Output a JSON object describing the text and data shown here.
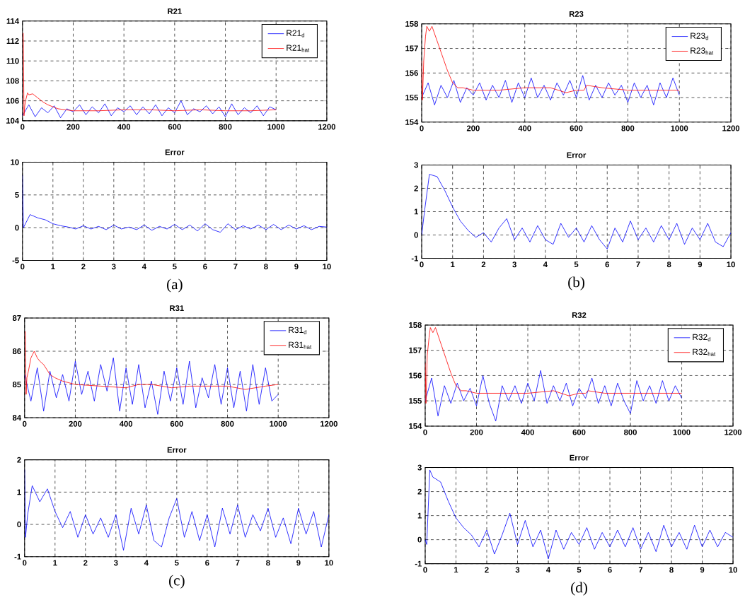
{
  "chart_data": [
    {
      "type": "line",
      "title": "R21",
      "xlim": [
        0,
        1200
      ],
      "ylim": [
        104,
        114
      ],
      "xticks": [
        0,
        200,
        400,
        600,
        800,
        1000,
        1200
      ],
      "yticks": [
        104,
        106,
        108,
        110,
        112,
        114
      ],
      "grid": true,
      "legend": "top right",
      "series": [
        {
          "name": "R21$_{d}$",
          "color": "#0000ff",
          "x": [
            0,
            25,
            50,
            75,
            100,
            125,
            150,
            175,
            200,
            225,
            250,
            275,
            300,
            325,
            350,
            375,
            400,
            425,
            450,
            475,
            500,
            525,
            550,
            575,
            600,
            625,
            650,
            675,
            700,
            725,
            750,
            775,
            800,
            825,
            850,
            875,
            900,
            925,
            950,
            975,
            1000
          ],
          "values": [
            104.5,
            105.6,
            104.4,
            105.3,
            104.8,
            105.5,
            104.3,
            105.2,
            104.9,
            105.6,
            104.6,
            105.4,
            104.8,
            105.7,
            104.5,
            105.3,
            104.9,
            105.5,
            104.6,
            105.4,
            104.7,
            105.6,
            104.5,
            105.3,
            104.8,
            106.0,
            104.6,
            105.2,
            104.9,
            105.5,
            104.7,
            105.4,
            104.4,
            105.7,
            104.6,
            105.3,
            104.8,
            105.5,
            104.5,
            105.4,
            105.1
          ]
        },
        {
          "name": "R21$_{hat}$",
          "color": "#ff0000",
          "x": [
            3,
            6,
            9,
            12,
            20,
            25,
            40,
            60,
            80,
            100,
            120,
            140,
            170,
            200,
            300,
            400,
            500,
            600,
            700,
            800,
            900,
            1000
          ],
          "values": [
            112.8,
            104.5,
            105.5,
            106.0,
            106.8,
            106.6,
            106.7,
            106.3,
            105.9,
            105.6,
            105.4,
            105.2,
            105.1,
            105.0,
            105.0,
            105.1,
            105.1,
            105.0,
            105.1,
            105.0,
            105.0,
            105.1
          ]
        }
      ]
    },
    {
      "type": "line",
      "title": "R23",
      "xlim": [
        0,
        1200
      ],
      "ylim": [
        154,
        158
      ],
      "xticks": [
        0,
        200,
        400,
        600,
        800,
        1000,
        1200
      ],
      "yticks": [
        154,
        155,
        156,
        157,
        158
      ],
      "grid": true,
      "legend": "top right",
      "series": [
        {
          "name": "R23$_{d}$",
          "color": "#0000ff",
          "x": [
            0,
            25,
            50,
            75,
            100,
            125,
            150,
            175,
            200,
            225,
            250,
            275,
            300,
            325,
            350,
            375,
            400,
            425,
            450,
            475,
            500,
            525,
            550,
            575,
            600,
            625,
            650,
            675,
            700,
            725,
            750,
            775,
            800,
            825,
            850,
            875,
            900,
            925,
            950,
            975,
            1000
          ],
          "values": [
            155.0,
            155.6,
            154.7,
            155.5,
            155.0,
            155.7,
            154.8,
            155.4,
            155.1,
            155.6,
            154.9,
            155.5,
            155.0,
            155.7,
            154.8,
            155.6,
            155.0,
            155.8,
            155.0,
            155.5,
            154.9,
            155.6,
            155.1,
            155.7,
            155.0,
            155.9,
            154.9,
            155.5,
            155.0,
            155.6,
            155.1,
            155.5,
            154.8,
            155.6,
            155.0,
            155.5,
            154.7,
            155.6,
            155.0,
            155.8,
            155.1
          ]
        },
        {
          "name": "R23$_{hat}$",
          "color": "#ff0000",
          "x": [
            0,
            3,
            8,
            15,
            20,
            30,
            40,
            60,
            80,
            100,
            120,
            140,
            160,
            200,
            300,
            400,
            500,
            560,
            600,
            630,
            640,
            700,
            800,
            900,
            1000
          ],
          "values": [
            156.5,
            154.9,
            156.5,
            157.5,
            157.9,
            157.7,
            157.9,
            157.3,
            156.7,
            156.1,
            155.6,
            155.4,
            155.4,
            155.3,
            155.3,
            155.4,
            155.4,
            155.2,
            155.3,
            155.3,
            155.5,
            155.4,
            155.3,
            155.3,
            155.3
          ]
        }
      ]
    },
    {
      "type": "line",
      "title": "Error",
      "xlim": [
        0,
        10
      ],
      "ylim": [
        -5,
        10
      ],
      "xticks": [
        0,
        1,
        2,
        3,
        4,
        5,
        6,
        7,
        8,
        9,
        10
      ],
      "yticks": [
        -5,
        0,
        5,
        10
      ],
      "grid": true,
      "annotations": [
        "(a)"
      ],
      "series": [
        {
          "color": "#0000ff",
          "x": [
            0,
            0.03,
            0.25,
            0.5,
            0.75,
            1,
            1.25,
            1.5,
            1.75,
            2,
            2.25,
            2.5,
            2.75,
            3,
            3.25,
            3.5,
            3.75,
            4,
            4.25,
            4.5,
            4.75,
            5,
            5.25,
            5.5,
            5.75,
            6,
            6.25,
            6.5,
            6.75,
            7,
            7.25,
            7.5,
            7.75,
            8,
            8.25,
            8.5,
            8.75,
            9,
            9.25,
            9.5,
            9.75,
            10
          ],
          "values": [
            8,
            0,
            2.0,
            1.5,
            1.2,
            0.6,
            0.3,
            0.1,
            -0.2,
            0.3,
            -0.2,
            0.2,
            -0.3,
            0.4,
            -0.2,
            0.1,
            -0.3,
            0.4,
            -0.4,
            0.2,
            -0.2,
            0.5,
            -0.3,
            0.4,
            -0.5,
            0.6,
            -0.3,
            -0.7,
            0.6,
            -0.3,
            0.3,
            -0.2,
            0.4,
            -0.3,
            0.5,
            -0.3,
            0.4,
            -0.2,
            0.3,
            -0.3,
            0.2,
            0.1
          ]
        }
      ]
    },
    {
      "type": "line",
      "title": "Error",
      "xlim": [
        0,
        10
      ],
      "ylim": [
        -1,
        3
      ],
      "xticks": [
        0,
        1,
        2,
        3,
        4,
        5,
        6,
        7,
        8,
        9,
        10
      ],
      "yticks": [
        -1,
        0,
        1,
        2,
        3
      ],
      "grid": true,
      "annotations": [
        "(b)"
      ],
      "series": [
        {
          "color": "#0000ff",
          "x": [
            0,
            0.1,
            0.25,
            0.5,
            0.75,
            1,
            1.25,
            1.5,
            1.75,
            2,
            2.25,
            2.5,
            2.75,
            3,
            3.25,
            3.5,
            3.75,
            4,
            4.25,
            4.5,
            4.75,
            5,
            5.25,
            5.5,
            5.75,
            6,
            6.25,
            6.5,
            6.75,
            7,
            7.25,
            7.5,
            7.75,
            8,
            8.25,
            8.5,
            8.75,
            9,
            9.25,
            9.5,
            9.75,
            10
          ],
          "values": [
            0,
            1.1,
            2.6,
            2.5,
            1.9,
            1.2,
            0.6,
            0.2,
            -0.1,
            0.1,
            -0.3,
            0.3,
            0.7,
            -0.2,
            0.3,
            -0.3,
            0.4,
            -0.2,
            -0.4,
            0.5,
            -0.1,
            0.3,
            -0.3,
            0.4,
            -0.2,
            -0.6,
            0.3,
            -0.3,
            0.6,
            -0.2,
            0.3,
            -0.3,
            0.4,
            -0.2,
            0.5,
            -0.4,
            0.3,
            -0.2,
            0.5,
            -0.3,
            -0.5,
            0.1
          ]
        }
      ]
    },
    {
      "type": "line",
      "title": "R31",
      "xlim": [
        0,
        1200
      ],
      "ylim": [
        84,
        87
      ],
      "xticks": [
        0,
        200,
        400,
        600,
        800,
        1000,
        1200
      ],
      "yticks": [
        84,
        85,
        86,
        87
      ],
      "grid": true,
      "legend": "top right",
      "series": [
        {
          "name": "R31$_{d}$",
          "color": "#0000ff",
          "x": [
            0,
            25,
            50,
            75,
            100,
            125,
            150,
            175,
            200,
            225,
            250,
            275,
            300,
            325,
            350,
            375,
            400,
            425,
            450,
            475,
            500,
            525,
            550,
            575,
            600,
            625,
            650,
            675,
            700,
            725,
            750,
            775,
            800,
            825,
            850,
            875,
            900,
            925,
            950,
            975,
            1000
          ],
          "values": [
            85.3,
            84.5,
            85.5,
            84.2,
            85.4,
            84.6,
            85.3,
            84.5,
            85.7,
            84.7,
            85.4,
            84.5,
            85.6,
            84.8,
            85.8,
            84.2,
            85.5,
            84.4,
            85.6,
            84.3,
            85.1,
            84.1,
            85.4,
            84.5,
            85.5,
            84.4,
            85.7,
            84.3,
            85.2,
            84.6,
            85.6,
            84.4,
            85.5,
            84.3,
            85.4,
            84.2,
            85.6,
            84.4,
            85.5,
            84.5,
            84.7
          ]
        },
        {
          "name": "R31$_{hat}$",
          "color": "#ff0000",
          "x": [
            3,
            6,
            9,
            15,
            25,
            38,
            50,
            60,
            75,
            100,
            120,
            150,
            200,
            300,
            400,
            450,
            500,
            580,
            650,
            800,
            870,
            950,
            1000
          ],
          "values": [
            86.6,
            84.7,
            85.2,
            85.4,
            85.8,
            86.0,
            85.8,
            85.7,
            85.6,
            85.3,
            85.2,
            85.1,
            85.0,
            84.95,
            84.9,
            85.0,
            85.0,
            84.9,
            84.95,
            84.95,
            84.85,
            84.95,
            85.0
          ]
        }
      ]
    },
    {
      "type": "line",
      "title": "R32",
      "xlim": [
        0,
        1200
      ],
      "ylim": [
        154,
        158
      ],
      "xticks": [
        0,
        200,
        400,
        600,
        800,
        1000,
        1200
      ],
      "yticks": [
        154,
        155,
        156,
        157,
        158
      ],
      "grid": true,
      "legend": "top right",
      "series": [
        {
          "name": "R32$_{d}$",
          "color": "#0000ff",
          "x": [
            0,
            25,
            50,
            75,
            100,
            125,
            150,
            175,
            200,
            225,
            250,
            275,
            300,
            325,
            350,
            375,
            400,
            425,
            450,
            475,
            500,
            525,
            550,
            575,
            600,
            625,
            650,
            675,
            700,
            725,
            750,
            775,
            800,
            825,
            850,
            875,
            900,
            925,
            950,
            975,
            1000
          ],
          "values": [
            155.0,
            155.9,
            154.4,
            155.6,
            154.9,
            155.7,
            155.0,
            155.5,
            154.8,
            156.0,
            154.9,
            154.2,
            155.6,
            155.0,
            155.6,
            154.9,
            155.7,
            155.0,
            156.2,
            154.9,
            155.6,
            155.0,
            155.7,
            154.8,
            155.5,
            155.1,
            155.9,
            154.9,
            155.6,
            154.8,
            155.7,
            155.0,
            154.5,
            155.8,
            155.0,
            155.6,
            154.9,
            155.8,
            155.0,
            155.6,
            155.1
          ]
        },
        {
          "name": "R32$_{hat}$",
          "color": "#ff0000",
          "x": [
            0,
            3,
            8,
            15,
            20,
            30,
            40,
            60,
            80,
            100,
            120,
            140,
            160,
            200,
            300,
            400,
            500,
            560,
            600,
            625,
            635,
            700,
            800,
            900,
            1000
          ],
          "values": [
            156.5,
            154.9,
            156.8,
            157.5,
            157.9,
            157.7,
            157.9,
            157.3,
            156.7,
            156.1,
            155.6,
            155.4,
            155.4,
            155.3,
            155.3,
            155.3,
            155.4,
            155.2,
            155.3,
            155.3,
            155.4,
            155.3,
            155.3,
            155.3,
            155.3
          ]
        }
      ]
    },
    {
      "type": "line",
      "title": "Error",
      "xlim": [
        0,
        10
      ],
      "ylim": [
        -1,
        2
      ],
      "xticks": [
        0,
        1,
        2,
        3,
        4,
        5,
        6,
        7,
        8,
        9,
        10
      ],
      "yticks": [
        -1,
        0,
        1,
        2
      ],
      "grid": true,
      "annotations": [
        "(c)"
      ],
      "series": [
        {
          "color": "#0000ff",
          "x": [
            0,
            0.03,
            0.1,
            0.25,
            0.5,
            0.75,
            1,
            1.25,
            1.5,
            1.75,
            2,
            2.25,
            2.5,
            2.75,
            3,
            3.25,
            3.5,
            3.75,
            4,
            4.25,
            4.5,
            4.75,
            5,
            5.25,
            5.5,
            5.75,
            6,
            6.25,
            6.5,
            6.75,
            7,
            7.25,
            7.5,
            7.75,
            8,
            8.25,
            8.5,
            8.75,
            9,
            9.25,
            9.5,
            9.75,
            10
          ],
          "values": [
            1.7,
            -0.4,
            0.3,
            1.2,
            0.7,
            1.1,
            0.4,
            -0.1,
            0.4,
            -0.4,
            0.3,
            -0.3,
            0.2,
            -0.4,
            0.3,
            -0.8,
            0.5,
            -0.3,
            0.6,
            -0.5,
            -0.7,
            0.2,
            0.8,
            -0.4,
            0.4,
            -0.5,
            0.3,
            -0.7,
            0.5,
            -0.3,
            0.6,
            -0.4,
            0.3,
            -0.2,
            0.5,
            -0.4,
            0.2,
            -0.6,
            0.5,
            -0.3,
            0.4,
            -0.7,
            0.3
          ]
        }
      ]
    },
    {
      "type": "line",
      "title": "Error",
      "xlim": [
        0,
        10
      ],
      "ylim": [
        -1,
        3
      ],
      "xticks": [
        0,
        1,
        2,
        3,
        4,
        5,
        6,
        7,
        8,
        9,
        10
      ],
      "yticks": [
        -1,
        0,
        1,
        2,
        3
      ],
      "grid": true,
      "annotations": [
        "(d)"
      ],
      "series": [
        {
          "color": "#0000ff",
          "x": [
            0,
            0.05,
            0.15,
            0.25,
            0.5,
            0.75,
            1,
            1.25,
            1.5,
            1.75,
            2,
            2.25,
            2.5,
            2.75,
            3,
            3.25,
            3.5,
            3.75,
            4,
            4.25,
            4.5,
            4.75,
            5,
            5.25,
            5.5,
            5.75,
            6,
            6.25,
            6.5,
            6.75,
            7,
            7.25,
            7.5,
            7.75,
            8,
            8.25,
            8.5,
            8.75,
            9,
            9.25,
            9.5,
            9.75,
            10
          ],
          "values": [
            0,
            -0.2,
            2.9,
            2.6,
            2.4,
            1.6,
            0.9,
            0.5,
            0.2,
            -0.3,
            0.4,
            -0.6,
            0.2,
            1.1,
            -0.2,
            0.8,
            -0.3,
            0.4,
            -0.8,
            0.4,
            -0.4,
            0.3,
            -0.2,
            0.5,
            -0.4,
            0.3,
            -0.3,
            0.4,
            -0.3,
            0.5,
            -0.4,
            0.3,
            -0.5,
            0.6,
            -0.3,
            0.3,
            -0.4,
            0.6,
            -0.3,
            0.4,
            -0.3,
            0.3,
            0.1
          ]
        }
      ]
    }
  ]
}
